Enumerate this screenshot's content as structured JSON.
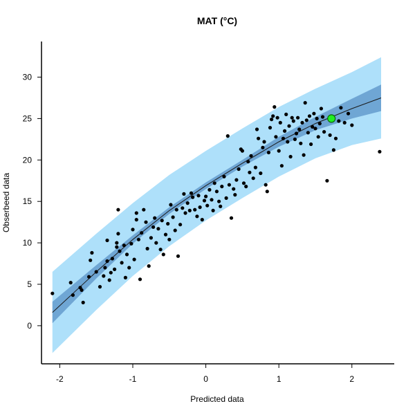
{
  "colors": {
    "prediction_band": "#aee0fa",
    "confidence_band": "#6fa6d4",
    "fit_line": "#1a1a1a",
    "points": "#000000",
    "highlight_fill": "#22ee22",
    "highlight_stroke": "#0a6a0a",
    "axis": "#000000"
  },
  "chart_data": {
    "type": "scatter",
    "title": "MAT (°C)",
    "xlabel": "Predicted data",
    "ylabel": "Obserbeed data",
    "xlim": [
      -2.25,
      2.58
    ],
    "ylim": [
      -4.6,
      34.3
    ],
    "xticks": [
      -2,
      -1,
      0,
      1,
      2
    ],
    "yticks": [
      0,
      5,
      10,
      15,
      20,
      25,
      30
    ],
    "fit": {
      "x": [
        -2.1,
        -1.5,
        -1.0,
        -0.5,
        0.0,
        0.5,
        1.0,
        1.5,
        2.0,
        2.4
      ],
      "y": [
        1.6,
        6.5,
        10.4,
        13.9,
        16.9,
        19.6,
        22.2,
        24.4,
        26.2,
        27.5
      ],
      "confidence_lower": [
        0.3,
        5.7,
        9.9,
        13.5,
        16.5,
        19.2,
        21.6,
        23.6,
        25.0,
        25.9
      ],
      "confidence_upper": [
        2.9,
        7.3,
        10.9,
        14.3,
        17.3,
        20.0,
        22.8,
        25.2,
        27.4,
        29.1
      ],
      "prediction_lower": [
        -3.3,
        1.9,
        6.0,
        9.6,
        12.7,
        15.4,
        18.0,
        20.2,
        21.8,
        22.6
      ],
      "prediction_upper": [
        6.5,
        11.1,
        14.8,
        18.2,
        21.1,
        23.8,
        26.4,
        28.6,
        30.6,
        32.4
      ]
    },
    "highlight_point": {
      "x": 1.72,
      "y": 25.0
    },
    "points": [
      [
        -2.1,
        3.9
      ],
      [
        -1.85,
        5.2
      ],
      [
        -1.82,
        3.7
      ],
      [
        -1.72,
        4.6
      ],
      [
        -1.7,
        4.3
      ],
      [
        -1.68,
        2.8
      ],
      [
        -1.6,
        5.9
      ],
      [
        -1.58,
        7.9
      ],
      [
        -1.56,
        8.8
      ],
      [
        -1.5,
        6.5
      ],
      [
        -1.45,
        4.7
      ],
      [
        -1.4,
        6.0
      ],
      [
        -1.38,
        7.0
      ],
      [
        -1.35,
        10.3
      ],
      [
        -1.35,
        7.8
      ],
      [
        -1.32,
        5.5
      ],
      [
        -1.3,
        6.4
      ],
      [
        -1.28,
        8.1
      ],
      [
        -1.25,
        6.8
      ],
      [
        -1.22,
        9.5
      ],
      [
        -1.22,
        10.0
      ],
      [
        -1.2,
        11.1
      ],
      [
        -1.2,
        14.0
      ],
      [
        -1.18,
        9.0
      ],
      [
        -1.15,
        7.6
      ],
      [
        -1.12,
        9.7
      ],
      [
        -1.1,
        5.8
      ],
      [
        -1.08,
        8.6
      ],
      [
        -1.05,
        7.0
      ],
      [
        -1.02,
        9.9
      ],
      [
        -1.0,
        11.6
      ],
      [
        -0.98,
        8.0
      ],
      [
        -0.95,
        12.8
      ],
      [
        -0.95,
        13.6
      ],
      [
        -0.92,
        10.4
      ],
      [
        -0.9,
        5.6
      ],
      [
        -0.88,
        11.2
      ],
      [
        -0.85,
        14.0
      ],
      [
        -0.82,
        12.5
      ],
      [
        -0.8,
        9.3
      ],
      [
        -0.78,
        7.2
      ],
      [
        -0.75,
        10.6
      ],
      [
        -0.72,
        11.9
      ],
      [
        -0.7,
        13.0
      ],
      [
        -0.68,
        10.0
      ],
      [
        -0.65,
        11.7
      ],
      [
        -0.62,
        9.2
      ],
      [
        -0.6,
        12.7
      ],
      [
        -0.58,
        8.6
      ],
      [
        -0.55,
        11.0
      ],
      [
        -0.52,
        12.3
      ],
      [
        -0.5,
        10.4
      ],
      [
        -0.48,
        14.6
      ],
      [
        -0.45,
        13.1
      ],
      [
        -0.42,
        11.5
      ],
      [
        -0.4,
        14.0
      ],
      [
        -0.38,
        8.4
      ],
      [
        -0.35,
        12.2
      ],
      [
        -0.32,
        14.2
      ],
      [
        -0.3,
        15.9
      ],
      [
        -0.28,
        13.6
      ],
      [
        -0.25,
        14.8
      ],
      [
        -0.22,
        13.9
      ],
      [
        -0.2,
        16.0
      ],
      [
        -0.18,
        15.5
      ],
      [
        -0.15,
        14.0
      ],
      [
        -0.12,
        13.2
      ],
      [
        -0.1,
        15.7
      ],
      [
        -0.08,
        14.3
      ],
      [
        -0.05,
        12.8
      ],
      [
        -0.02,
        15.1
      ],
      [
        0.0,
        15.6
      ],
      [
        0.02,
        14.5
      ],
      [
        0.05,
        16.4
      ],
      [
        0.08,
        15.2
      ],
      [
        0.1,
        13.9
      ],
      [
        0.12,
        17.2
      ],
      [
        0.15,
        16.2
      ],
      [
        0.18,
        15.0
      ],
      [
        0.2,
        14.4
      ],
      [
        0.22,
        16.8
      ],
      [
        0.25,
        18.0
      ],
      [
        0.28,
        15.4
      ],
      [
        0.3,
        22.9
      ],
      [
        0.32,
        17.0
      ],
      [
        0.35,
        13.0
      ],
      [
        0.38,
        16.5
      ],
      [
        0.4,
        15.8
      ],
      [
        0.42,
        17.6
      ],
      [
        0.45,
        18.9
      ],
      [
        0.48,
        21.3
      ],
      [
        0.5,
        21.1
      ],
      [
        0.52,
        17.2
      ],
      [
        0.55,
        16.8
      ],
      [
        0.58,
        19.8
      ],
      [
        0.6,
        18.5
      ],
      [
        0.62,
        20.5
      ],
      [
        0.65,
        17.8
      ],
      [
        0.68,
        19.1
      ],
      [
        0.7,
        23.7
      ],
      [
        0.72,
        22.6
      ],
      [
        0.75,
        18.4
      ],
      [
        0.78,
        21.5
      ],
      [
        0.8,
        22.2
      ],
      [
        0.82,
        17.0
      ],
      [
        0.84,
        16.2
      ],
      [
        0.86,
        20.9
      ],
      [
        0.88,
        23.9
      ],
      [
        0.9,
        24.9
      ],
      [
        0.92,
        25.3
      ],
      [
        0.94,
        26.4
      ],
      [
        0.96,
        22.8
      ],
      [
        0.98,
        25.1
      ],
      [
        1.0,
        21.1
      ],
      [
        1.02,
        24.5
      ],
      [
        1.04,
        19.3
      ],
      [
        1.06,
        22.6
      ],
      [
        1.08,
        23.5
      ],
      [
        1.1,
        25.5
      ],
      [
        1.12,
        22.2
      ],
      [
        1.14,
        24.1
      ],
      [
        1.16,
        20.4
      ],
      [
        1.18,
        25.1
      ],
      [
        1.2,
        24.7
      ],
      [
        1.22,
        22.5
      ],
      [
        1.24,
        23.2
      ],
      [
        1.26,
        25.1
      ],
      [
        1.28,
        23.7
      ],
      [
        1.3,
        22.0
      ],
      [
        1.32,
        24.5
      ],
      [
        1.34,
        20.6
      ],
      [
        1.36,
        26.9
      ],
      [
        1.38,
        24.8
      ],
      [
        1.4,
        23.3
      ],
      [
        1.42,
        25.3
      ],
      [
        1.44,
        21.9
      ],
      [
        1.46,
        24.0
      ],
      [
        1.48,
        25.6
      ],
      [
        1.5,
        23.8
      ],
      [
        1.52,
        25.0
      ],
      [
        1.54,
        22.8
      ],
      [
        1.56,
        24.4
      ],
      [
        1.58,
        26.2
      ],
      [
        1.6,
        25.2
      ],
      [
        1.62,
        23.4
      ],
      [
        1.66,
        17.5
      ],
      [
        1.7,
        23.0
      ],
      [
        1.75,
        21.2
      ],
      [
        1.78,
        22.6
      ],
      [
        1.82,
        24.7
      ],
      [
        1.85,
        26.3
      ],
      [
        1.9,
        24.5
      ],
      [
        1.95,
        25.6
      ],
      [
        2.0,
        24.2
      ],
      [
        2.38,
        21.0
      ]
    ]
  }
}
